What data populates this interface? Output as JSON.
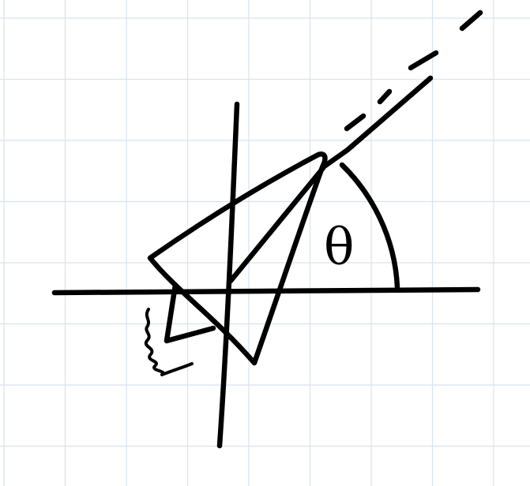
{
  "diagram": {
    "angle_symbol": "θ",
    "colors": {
      "background": "#ffffff",
      "grid": "#d6e4ee",
      "ink": "#000000"
    }
  }
}
